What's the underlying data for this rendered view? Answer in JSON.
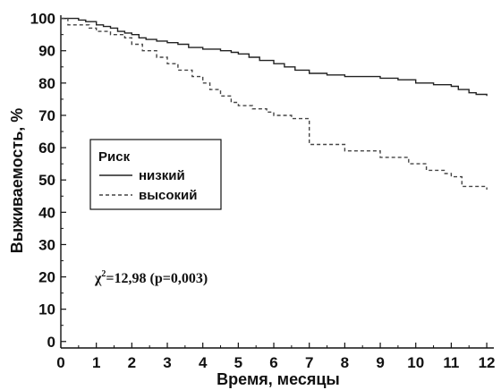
{
  "chart_data": {
    "type": "line",
    "step": true,
    "xlabel": "Время, месяцы",
    "ylabel": "Выживаемость, %",
    "xlim": [
      0,
      12.2
    ],
    "ylim": [
      -2,
      101
    ],
    "x_ticks": [
      "0",
      "1",
      "2",
      "3",
      "4",
      "5",
      "6",
      "7",
      "8",
      "9",
      "10",
      "11",
      "12"
    ],
    "y_ticks": [
      "0",
      "10",
      "20",
      "30",
      "40",
      "50",
      "60",
      "70",
      "80",
      "90",
      "100"
    ],
    "grid": false,
    "legend": {
      "title": "Риск",
      "placement": "center-left"
    },
    "annotation": {
      "chi": "χ",
      "sup": "2",
      "rest": "=12,98 (p=0,003)"
    },
    "series": [
      {
        "name": "низкий",
        "line_style": "solid",
        "color": "#222222",
        "x": [
          0,
          0.5,
          0.7,
          1.0,
          1.2,
          1.4,
          1.6,
          1.8,
          2.0,
          2.2,
          2.4,
          2.7,
          3.0,
          3.3,
          3.6,
          4.0,
          4.5,
          4.8,
          5.0,
          5.3,
          5.6,
          6.0,
          6.3,
          6.6,
          7.0,
          7.5,
          8.0,
          9.0,
          9.5,
          10.0,
          10.5,
          11.0,
          11.2,
          11.5,
          11.7,
          12.0
        ],
        "y": [
          100,
          99.5,
          99,
          98,
          97.5,
          97,
          96,
          95.5,
          95,
          94,
          93.5,
          93,
          92.5,
          92,
          91,
          90.5,
          90,
          89.5,
          89,
          88,
          87,
          86,
          85,
          84,
          83,
          82.5,
          82,
          81.5,
          81,
          80,
          79.5,
          79,
          78,
          77,
          76.5,
          76
        ]
      },
      {
        "name": "высокий",
        "line_style": "dashed",
        "color": "#444444",
        "x": [
          0,
          0.2,
          0.8,
          1.0,
          1.4,
          1.8,
          2.0,
          2.3,
          2.7,
          3.0,
          3.3,
          3.7,
          4.0,
          4.2,
          4.5,
          4.8,
          5.0,
          5.4,
          5.8,
          6.0,
          6.5,
          7.0,
          8.0,
          9.0,
          9.8,
          10.3,
          10.8,
          11.0,
          11.3,
          12.0
        ],
        "y": [
          100,
          98,
          97,
          96,
          95,
          94,
          92,
          90,
          88,
          86,
          84,
          82,
          80,
          78,
          76,
          74,
          73,
          72,
          71,
          70,
          69,
          61,
          59,
          57,
          55,
          53,
          52,
          51,
          48,
          47
        ]
      }
    ]
  }
}
